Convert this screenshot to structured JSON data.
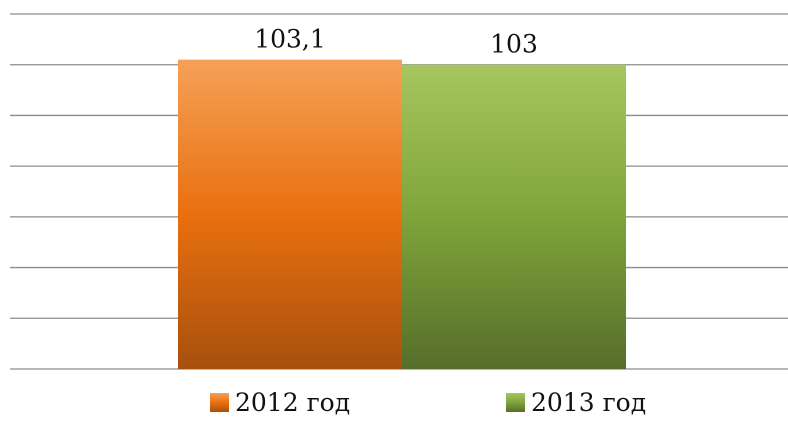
{
  "chart_data": {
    "type": "bar",
    "categories": [
      "2012 год",
      "2013 год"
    ],
    "values": [
      103.1,
      103
    ],
    "data_labels": [
      "103,1",
      "103"
    ],
    "title": "",
    "xlabel": "",
    "ylabel": "",
    "ylim": [
      97,
      104
    ],
    "grid": true,
    "legend": "bottom",
    "colors": {
      "2012 год": {
        "top": "#F5A157",
        "mid": "#E9700F",
        "bottom": "#A8500E"
      },
      "2013 год": {
        "top": "#A6C65E",
        "mid": "#7FA43A",
        "bottom": "#566E2A"
      }
    }
  }
}
